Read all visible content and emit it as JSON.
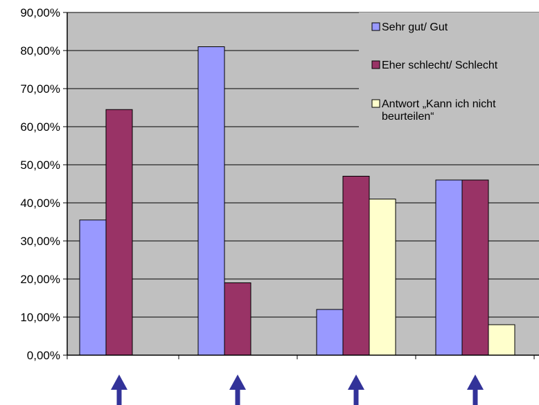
{
  "chart_data": {
    "type": "bar",
    "title": "",
    "xlabel": "",
    "ylabel": "",
    "ylim": [
      0,
      90
    ],
    "y_tick_step": 10,
    "y_tick_labels": [
      "0,00%",
      "10,00%",
      "20,00%",
      "30,00%",
      "40,00%",
      "50,00%",
      "60,00%",
      "70,00%",
      "80,00%",
      "90,00%"
    ],
    "categories": [
      "",
      "",
      "",
      ""
    ],
    "series": [
      {
        "name": "Sehr gut/ Gut",
        "color": "#9999ff",
        "values": [
          35.5,
          81,
          12,
          46
        ]
      },
      {
        "name": "Eher schlecht/ Schlecht",
        "color": "#993366",
        "values": [
          64.5,
          19,
          47,
          46
        ]
      },
      {
        "name": "Antwort „Kann ich nicht beurteilen“",
        "legend_lines": [
          "Antwort „Kann ich nicht",
          "beurteilen“"
        ],
        "color": "#ffffcc",
        "values": [
          0,
          0,
          41,
          8
        ]
      }
    ],
    "grid": true,
    "plot_background": "#c0c0c0",
    "legend_position": "top-right",
    "arrow_color": "#333399",
    "arrows_under_groups": true
  }
}
